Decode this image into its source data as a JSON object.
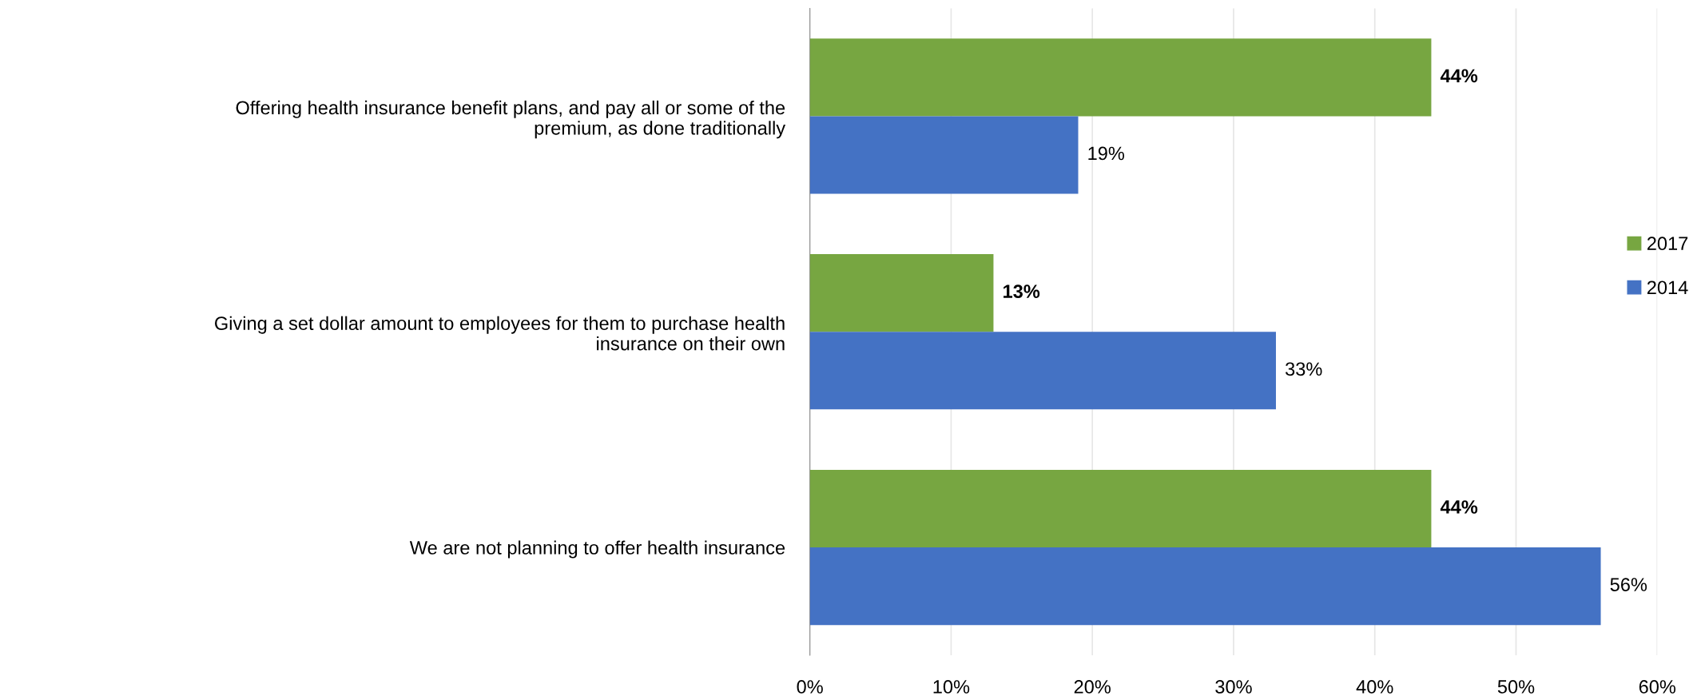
{
  "chart_data": {
    "type": "bar",
    "orientation": "horizontal",
    "categories": [
      "Offering health insurance benefit plans, and pay all or some of the\npremium, as done traditionally",
      "Giving a set dollar amount to employees for them to purchase health\ninsurance on their own",
      "We are not planning to offer health insurance"
    ],
    "series": [
      {
        "name": "2017",
        "color": "#77a641",
        "values": [
          44,
          13,
          44
        ],
        "value_labels": [
          "44%",
          "13%",
          "44%"
        ]
      },
      {
        "name": "2014",
        "color": "#4472c4",
        "values": [
          19,
          33,
          56
        ],
        "value_labels": [
          "19%",
          "33%",
          "56%"
        ]
      }
    ],
    "xlim": [
      0,
      60
    ],
    "xticks": [
      {
        "value": 0,
        "label": "0%"
      },
      {
        "value": 10,
        "label": "10%"
      },
      {
        "value": 20,
        "label": "20%"
      },
      {
        "value": 30,
        "label": "30%"
      },
      {
        "value": 40,
        "label": "40%"
      },
      {
        "value": 50,
        "label": "50%"
      },
      {
        "value": 60,
        "label": "60%"
      }
    ],
    "grid": "x",
    "legend": "right"
  }
}
